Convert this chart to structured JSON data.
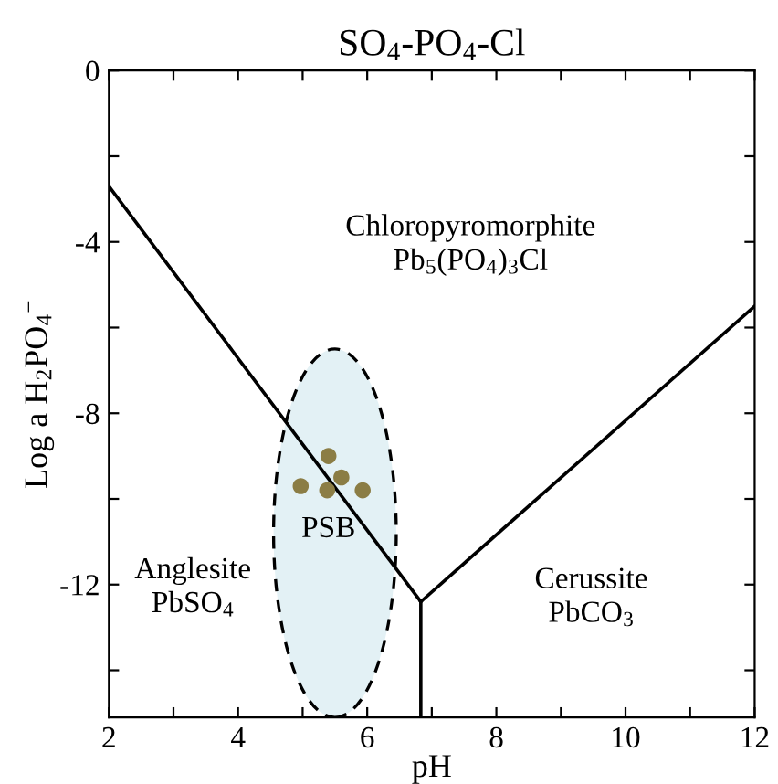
{
  "chart_data": {
    "type": "line",
    "title": "SO$_{4}$-PO$_{4}$-Cl",
    "xlabel": "pH",
    "ylabel": "Log a H$_{2}$PO$_{4}$$^{−}$",
    "xlim": [
      2,
      12
    ],
    "ylim": [
      -15.1,
      0
    ],
    "xticks": [
      2,
      {
        "value": 3,
        "label": null
      },
      4,
      {
        "value": 5,
        "label": null
      },
      6,
      {
        "value": 7,
        "label": null
      },
      8,
      {
        "value": 9,
        "label": null
      },
      10,
      {
        "value": 11,
        "label": null
      },
      12
    ],
    "yticks": [
      0,
      {
        "value": -2,
        "label": null
      },
      -4,
      {
        "value": -6,
        "label": null
      },
      -8,
      {
        "value": -10,
        "label": null
      },
      -12,
      {
        "value": -14,
        "label": null
      }
    ],
    "grid": false,
    "series": [
      {
        "color": "#000000",
        "x": [
          2,
          6.83
        ],
        "values": [
          -2.7,
          -12.4
        ]
      },
      {
        "color": "#000000",
        "x": [
          6.83,
          12
        ],
        "values": [
          -12.4,
          -5.5
        ]
      },
      {
        "color": "#000000",
        "x": [
          6.83,
          6.83
        ],
        "values": [
          -12.4,
          -15.1
        ]
      },
      {
        "type": "scatter",
        "color": "#8b7d45",
        "marker": "circle",
        "x": [
          4.97,
          5.4,
          5.6,
          5.38,
          5.93
        ],
        "values": [
          -9.7,
          -9.0,
          -9.5,
          -9.8,
          -9.8
        ]
      }
    ],
    "annotations": [
      "Chloropyromorphite\nPb$_{5}$(PO$_{4}$)$_{3}$Cl",
      "Anglesite\nPbSO$_{4}$",
      "PSB",
      "Cerussite\nPbCO$_{3}$"
    ]
  }
}
